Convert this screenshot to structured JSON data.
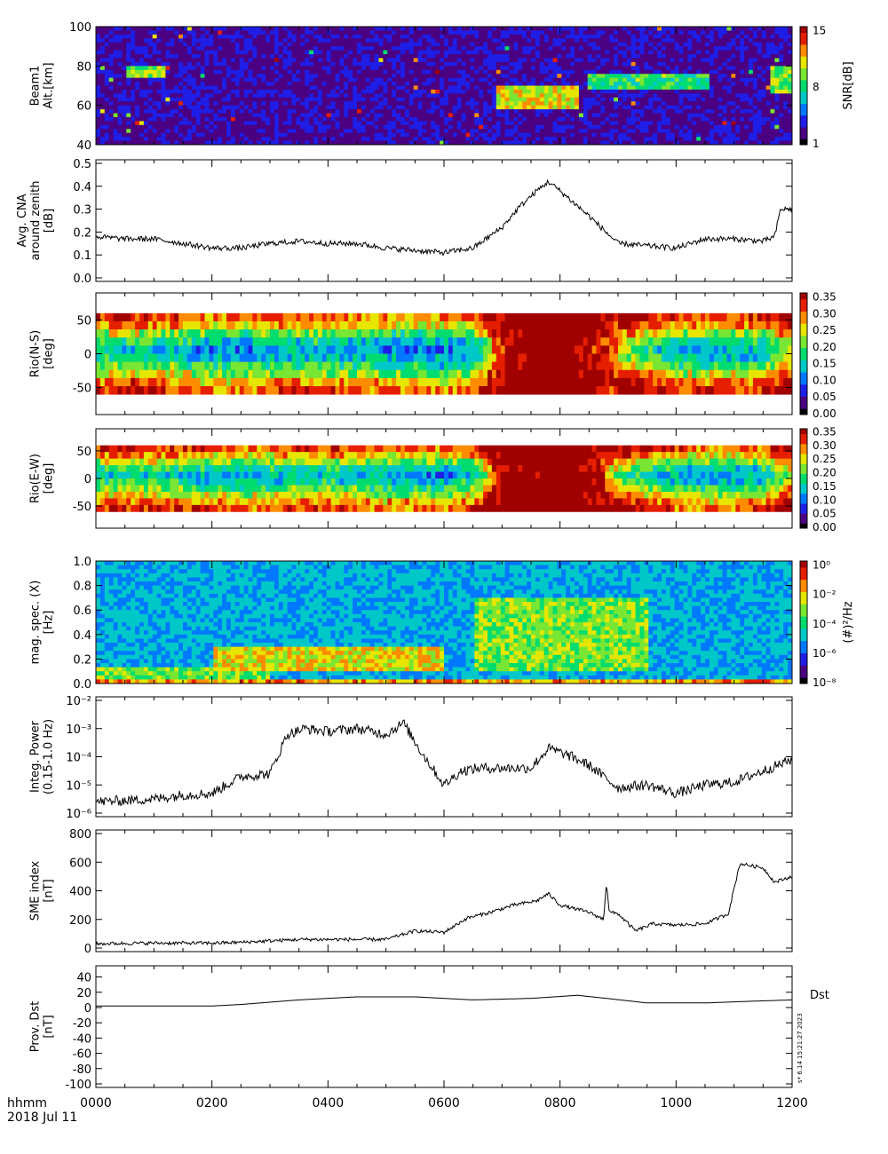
{
  "colors": {
    "axis": "#000000",
    "background": "#ffffff"
  },
  "colormap": [
    "#000000",
    "#4b0082",
    "#1e1ee6",
    "#0078ff",
    "#00c8c8",
    "#00dc6e",
    "#78e632",
    "#e6e600",
    "#ff8c00",
    "#e61e00",
    "#a00000"
  ],
  "time_axis": {
    "ticks": [
      "0000",
      "0200",
      "0400",
      "0600",
      "0800",
      "1000",
      "1200"
    ],
    "label_format": "hhmm",
    "date": "2018 Jul 11"
  },
  "stamp": "s* 6.14 15:21:27 2023",
  "chart_data": [
    {
      "type": "heatmap",
      "ylabel": [
        "Beam1",
        "Alt.[km]"
      ],
      "yticks": [
        "40",
        "60",
        "80",
        "100"
      ],
      "ylim": [
        40,
        100
      ],
      "colorbar": {
        "label": "SNR[dB]",
        "ticks": [
          "1",
          "8",
          "15"
        ],
        "range": [
          1,
          15
        ]
      },
      "features": [
        {
          "t": [
            0.5,
            1.2
          ],
          "alt": [
            75,
            79
          ],
          "level": 0.6
        },
        {
          "t": [
            6.9,
            8.3
          ],
          "alt": [
            58,
            70
          ],
          "level": 0.7
        },
        {
          "t": [
            8.5,
            10.6
          ],
          "alt": [
            68,
            76
          ],
          "level": 0.5
        },
        {
          "t": [
            11.6,
            12.0
          ],
          "alt": [
            67,
            80
          ],
          "level": 0.6
        }
      ]
    },
    {
      "type": "line",
      "ylabel": [
        "Avg. CNA",
        "around zenith",
        "[dB]"
      ],
      "yticks": [
        "0.0",
        "0.1",
        "0.2",
        "0.3",
        "0.4",
        "0.5"
      ],
      "ylim": [
        0,
        0.5
      ],
      "series": [
        {
          "x": [
            0,
            0.5,
            1,
            1.5,
            2,
            2.5,
            3,
            3.5,
            4,
            4.5,
            5,
            5.5,
            6,
            6.5,
            7,
            7.3,
            7.6,
            7.8,
            8,
            8.5,
            9,
            9.5,
            10,
            10.5,
            11,
            11.5,
            11.7,
            11.8,
            12
          ],
          "y": [
            0.18,
            0.17,
            0.17,
            0.15,
            0.13,
            0.13,
            0.15,
            0.16,
            0.15,
            0.15,
            0.13,
            0.12,
            0.11,
            0.13,
            0.22,
            0.31,
            0.38,
            0.42,
            0.38,
            0.27,
            0.15,
            0.14,
            0.13,
            0.17,
            0.17,
            0.16,
            0.18,
            0.3,
            0.3
          ],
          "noise": 0.012
        }
      ]
    },
    {
      "type": "heatmap",
      "ylabel": [
        "Rio(N-S)",
        "[deg]"
      ],
      "yticks": [
        "-50",
        "0",
        "50"
      ],
      "ylim": [
        -90,
        90
      ],
      "rows_range": [
        -60,
        60
      ],
      "colorbar": {
        "ticks": [
          "0.00",
          "0.05",
          "0.10",
          "0.15",
          "0.20",
          "0.25",
          "0.30",
          "0.35"
        ],
        "range": [
          0,
          0.35
        ]
      },
      "base": [
        0.22,
        0.23,
        0.22,
        0.21,
        0.19,
        0.19,
        0.2,
        0.21,
        0.2,
        0.2,
        0.19,
        0.18,
        0.18,
        0.2,
        0.34,
        0.38,
        0.38,
        0.36,
        0.3,
        0.25,
        0.21,
        0.21,
        0.21,
        0.22,
        0.3
      ],
      "row_offset": [
        0.09,
        0.06,
        0.0,
        -0.05,
        -0.08,
        -0.06,
        -0.02,
        0.02,
        0.07,
        0.1
      ]
    },
    {
      "type": "heatmap",
      "ylabel": [
        "Rio(E-W)",
        "[deg]"
      ],
      "yticks": [
        "-50",
        "0",
        "50"
      ],
      "ylim": [
        -90,
        90
      ],
      "rows_range": [
        -60,
        60
      ],
      "colorbar": {
        "ticks": [
          "0.00",
          "0.05",
          "0.10",
          "0.15",
          "0.20",
          "0.25",
          "0.30",
          "0.35"
        ],
        "range": [
          0,
          0.35
        ]
      },
      "base": [
        0.22,
        0.23,
        0.22,
        0.21,
        0.2,
        0.19,
        0.2,
        0.21,
        0.21,
        0.2,
        0.19,
        0.19,
        0.19,
        0.21,
        0.36,
        0.38,
        0.38,
        0.36,
        0.27,
        0.22,
        0.2,
        0.19,
        0.19,
        0.2,
        0.3
      ],
      "row_offset": [
        0.1,
        0.06,
        0.01,
        -0.04,
        -0.07,
        -0.05,
        -0.01,
        0.03,
        0.07,
        0.1
      ]
    },
    {
      "type": "heatmap",
      "ylabel": [
        "mag. spec. (X)",
        "[Hz]"
      ],
      "yticks": [
        "0.0",
        "0.2",
        "0.4",
        "0.6",
        "0.8",
        "1.0"
      ],
      "ylim": [
        0,
        1.0
      ],
      "colorbar": {
        "label": "(#)²/Hz",
        "ticks": [
          "10⁻⁸",
          "10⁻⁶",
          "10⁻⁴",
          "10⁻²",
          "10⁰"
        ],
        "range": [
          -9,
          0
        ]
      },
      "features": [
        {
          "t": [
            0,
            12
          ],
          "f": [
            0.0,
            0.03
          ],
          "level": 0.78
        },
        {
          "t": [
            0,
            3
          ],
          "f": [
            0.03,
            0.15
          ],
          "level": 0.58
        },
        {
          "t": [
            2,
            6
          ],
          "f": [
            0.1,
            0.3
          ],
          "level": 0.7
        },
        {
          "t": [
            6.5,
            9.5
          ],
          "f": [
            0.1,
            0.7
          ],
          "level": 0.6
        }
      ]
    },
    {
      "type": "line",
      "ylabel": [
        "Integ. Power",
        "(0.15-1.0 Hz)"
      ],
      "log": true,
      "yticks": [
        "10⁻⁶",
        "10⁻⁵",
        "10⁻⁴",
        "10⁻³",
        "10⁻²"
      ],
      "ylim_exp": [
        -6,
        -2
      ],
      "series": [
        {
          "x": [
            0,
            1,
            1.5,
            2,
            2.5,
            3,
            3.3,
            3.6,
            4,
            4.5,
            5,
            5.3,
            5.6,
            6,
            6.3,
            6.6,
            7,
            7.5,
            7.8,
            8.2,
            8.5,
            9,
            9.5,
            10,
            10.5,
            11,
            11.5,
            12
          ],
          "y": [
            -5.6,
            -5.5,
            -5.35,
            -5.3,
            -4.7,
            -4.6,
            -3.2,
            -3.0,
            -3.1,
            -3.0,
            -3.2,
            -2.8,
            -3.8,
            -5.0,
            -4.5,
            -4.4,
            -4.4,
            -4.4,
            -3.7,
            -4.0,
            -4.3,
            -5.1,
            -5.0,
            -5.3,
            -5.0,
            -4.9,
            -4.5,
            -4.1
          ],
          "noise": 0.18
        }
      ]
    },
    {
      "type": "line",
      "ylabel": [
        "SME index",
        "[nT]"
      ],
      "yticks": [
        "0",
        "200",
        "400",
        "600",
        "800"
      ],
      "ylim": [
        0,
        800
      ],
      "series": [
        {
          "x": [
            0,
            1,
            2,
            2.5,
            3,
            3.5,
            4,
            5,
            5.5,
            6,
            6.4,
            6.8,
            7.2,
            7.6,
            7.8,
            8,
            8.5,
            8.75,
            8.8,
            8.85,
            9,
            9.3,
            9.6,
            10,
            10.5,
            10.9,
            11.1,
            11.5,
            11.7,
            12
          ],
          "y": [
            30,
            35,
            35,
            40,
            50,
            60,
            60,
            60,
            120,
            110,
            210,
            250,
            300,
            330,
            380,
            300,
            250,
            200,
            460,
            250,
            240,
            120,
            170,
            160,
            170,
            240,
            590,
            560,
            460,
            500
          ],
          "noise": 12
        }
      ]
    },
    {
      "type": "line",
      "ylabel": [
        "Prov. Dst",
        "[nT]"
      ],
      "series_label": "Dst",
      "yticks": [
        "-100",
        "-80",
        "-60",
        "-40",
        "-20",
        "0",
        "20",
        "40"
      ],
      "ylim": [
        -100,
        50
      ],
      "series": [
        {
          "x": [
            0,
            1,
            2,
            2.5,
            3.5,
            4.5,
            5.5,
            6.5,
            7.5,
            8.3,
            8.8,
            9.5,
            10.5,
            11.2,
            12
          ],
          "y": [
            2,
            2,
            2,
            4,
            10,
            14,
            14,
            10,
            12,
            16,
            12,
            6,
            6,
            8,
            10
          ],
          "noise": 0
        }
      ]
    }
  ]
}
